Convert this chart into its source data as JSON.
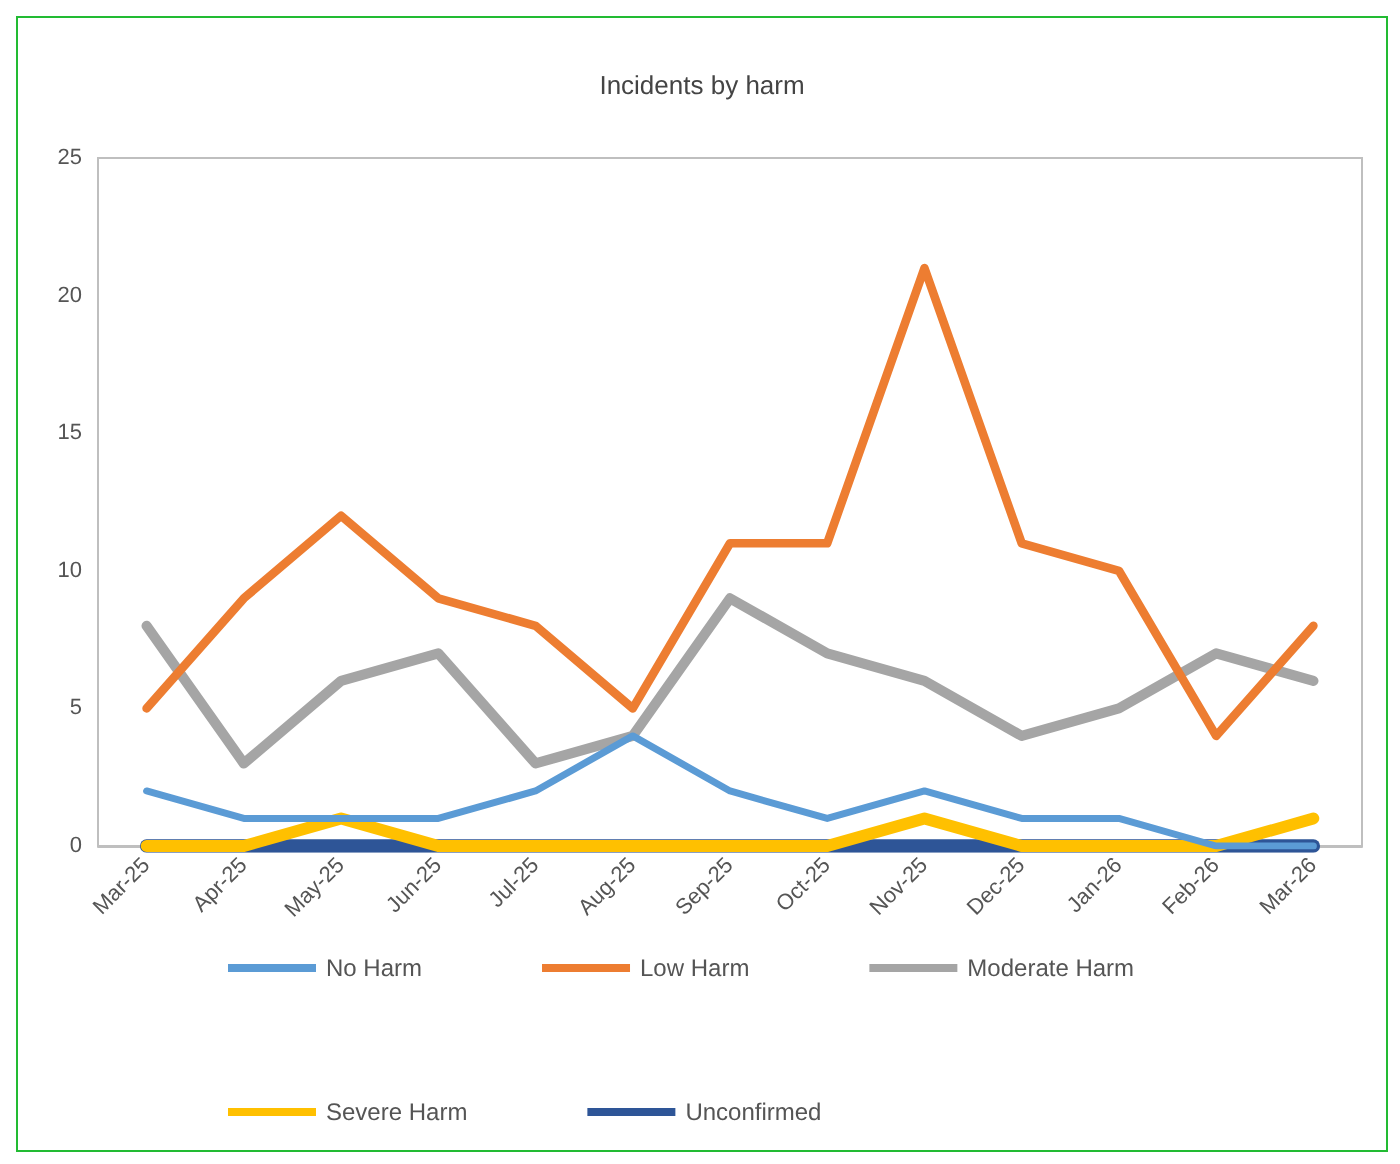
{
  "chart_data": {
    "type": "line",
    "title": "Incidents by harm",
    "categories": [
      "Mar-25",
      "Apr-25",
      "May-25",
      "Jun-25",
      "Jul-25",
      "Aug-25",
      "Sep-25",
      "Oct-25",
      "Nov-25",
      "Dec-25",
      "Jan-26",
      "Feb-26",
      "Mar-26"
    ],
    "series": [
      {
        "name": "No Harm",
        "color": "#5b9bd5",
        "values": [
          2,
          1,
          1,
          1,
          2,
          4,
          2,
          1,
          2,
          1,
          1,
          0,
          0
        ]
      },
      {
        "name": "Low Harm",
        "color": "#ed7d31",
        "values": [
          5,
          9,
          12,
          9,
          8,
          5,
          11,
          11,
          21,
          11,
          10,
          4,
          8
        ]
      },
      {
        "name": "Moderate Harm",
        "color": "#a5a5a5",
        "values": [
          8,
          3,
          6,
          7,
          3,
          4,
          9,
          7,
          6,
          4,
          5,
          7,
          6
        ]
      },
      {
        "name": "Severe Harm",
        "color": "#ffc000",
        "values": [
          0,
          0,
          1,
          0,
          0,
          0,
          0,
          0,
          1,
          0,
          0,
          0,
          1
        ]
      },
      {
        "name": "Unconfirmed",
        "color": "#2e5597",
        "values": [
          0,
          0,
          0,
          0,
          0,
          0,
          0,
          0,
          0,
          0,
          0,
          0,
          0
        ]
      }
    ],
    "ylim": [
      0,
      25
    ],
    "yticks": [
      0,
      5,
      10,
      15,
      20,
      25
    ],
    "grid": false,
    "legend": "bottom",
    "marker": "none",
    "line_style": "solid"
  }
}
